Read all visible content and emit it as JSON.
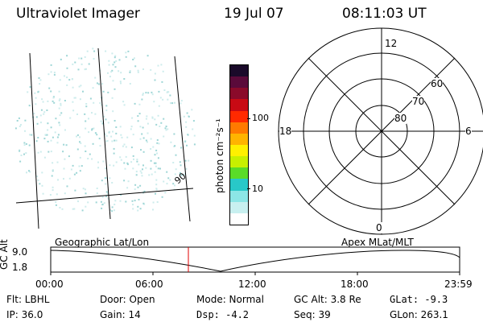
{
  "header": {
    "instrument": "Ultraviolet Imager",
    "date": "19 Jul 07",
    "time": "08:11:03 UT"
  },
  "colorbar": {
    "unit_label": "photon cm⁻²s⁻¹",
    "ticks": [
      "100",
      "10"
    ],
    "colors": [
      "#1a0a2a",
      "#5a0a3a",
      "#8a0a2a",
      "#c80a14",
      "#ff2a00",
      "#ff7a00",
      "#ffb400",
      "#fff000",
      "#c8f000",
      "#5adc28",
      "#28c8c8",
      "#8ce6e6",
      "#c8f0f0",
      "#ffffff"
    ]
  },
  "polar_plot": {
    "mlt_labels": {
      "top": "12",
      "left": "18",
      "right": "6",
      "bottom": "0"
    },
    "lat_labels": [
      "60",
      "70",
      "80"
    ]
  },
  "orbit_panel": {
    "ylabel": "GC Alt",
    "y_ticks": [
      "9.0",
      "1.8"
    ],
    "left_caption": "Geographic Lat/Lon",
    "right_caption": "Apex MLat/MLT",
    "x_ticks": [
      "00:00",
      "06:00",
      "12:00",
      "18:00",
      "23:59"
    ],
    "marker_color": "#e00000"
  },
  "status": {
    "filter": "Flt: LBHL",
    "ip": "IP: 36.0",
    "door": "Door: Open",
    "gain": "Gain: 14",
    "mode": "Mode: Normal",
    "dsp": "Dsp:    -4.2",
    "gc_alt": "GC Alt: 3.8 Re",
    "seq": "Seq: 39",
    "glat": "GLat:   -9.3",
    "glon": "GLon: 263.1"
  }
}
